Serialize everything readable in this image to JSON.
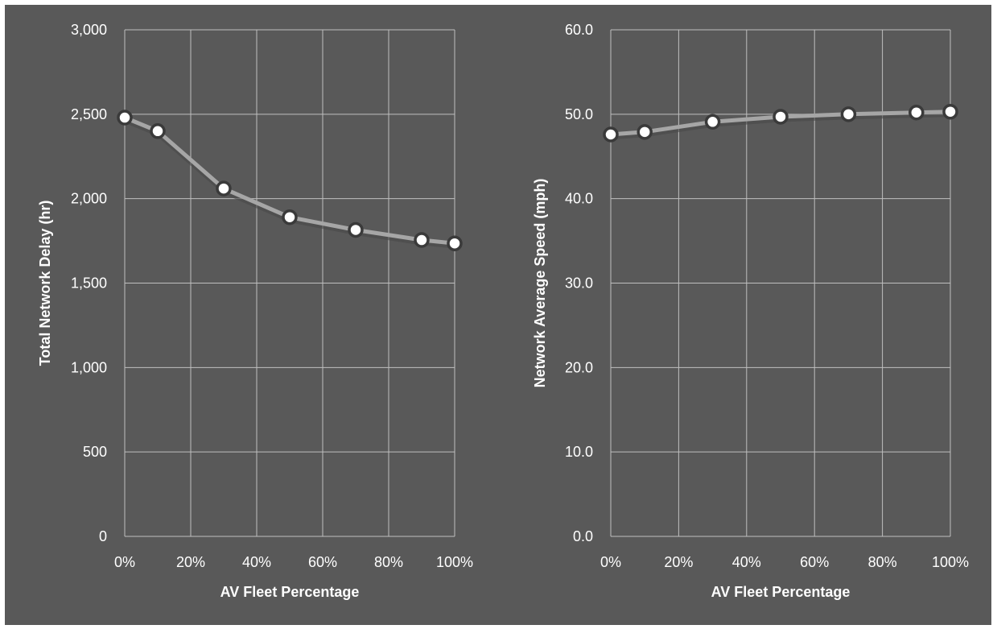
{
  "colors": {
    "background": "#595959",
    "grid": "#bfbfbf",
    "line": "#a6a6a6",
    "marker_fill": "#ffffff",
    "marker_stroke": "#3a3a3a",
    "text": "#ffffff"
  },
  "chart_data": [
    {
      "type": "line",
      "title": "",
      "xlabel": "AV Fleet Percentage",
      "ylabel": "Total Network Delay (hr)",
      "x": [
        0,
        10,
        30,
        50,
        70,
        90,
        100
      ],
      "x_tick_values": [
        0,
        20,
        40,
        60,
        80,
        100
      ],
      "x_tick_labels": [
        "0%",
        "20%",
        "40%",
        "60%",
        "80%",
        "100%"
      ],
      "xlim": [
        0,
        100
      ],
      "y_tick_values": [
        0,
        500,
        1000,
        1500,
        2000,
        2500,
        3000
      ],
      "y_tick_labels": [
        "0",
        "500",
        "1,000",
        "1,500",
        "2,000",
        "2,500",
        "3,000"
      ],
      "ylim": [
        0,
        3000
      ],
      "grid": true,
      "series": [
        {
          "values": [
            2480,
            2400,
            2060,
            1890,
            1815,
            1755,
            1735
          ]
        }
      ]
    },
    {
      "type": "line",
      "title": "",
      "xlabel": "AV Fleet Percentage",
      "ylabel": "Network Average Speed (mph)",
      "x": [
        0,
        10,
        30,
        50,
        70,
        90,
        100
      ],
      "x_tick_values": [
        0,
        20,
        40,
        60,
        80,
        100
      ],
      "x_tick_labels": [
        "0%",
        "20%",
        "40%",
        "60%",
        "80%",
        "100%"
      ],
      "xlim": [
        0,
        100
      ],
      "y_tick_values": [
        0,
        10,
        20,
        30,
        40,
        50,
        60
      ],
      "y_tick_labels": [
        "0.0",
        "10.0",
        "20.0",
        "30.0",
        "40.0",
        "50.0",
        "60.0"
      ],
      "ylim": [
        0,
        60
      ],
      "grid": true,
      "series": [
        {
          "values": [
            47.6,
            47.9,
            49.1,
            49.7,
            50.0,
            50.2,
            50.3
          ]
        }
      ]
    }
  ]
}
